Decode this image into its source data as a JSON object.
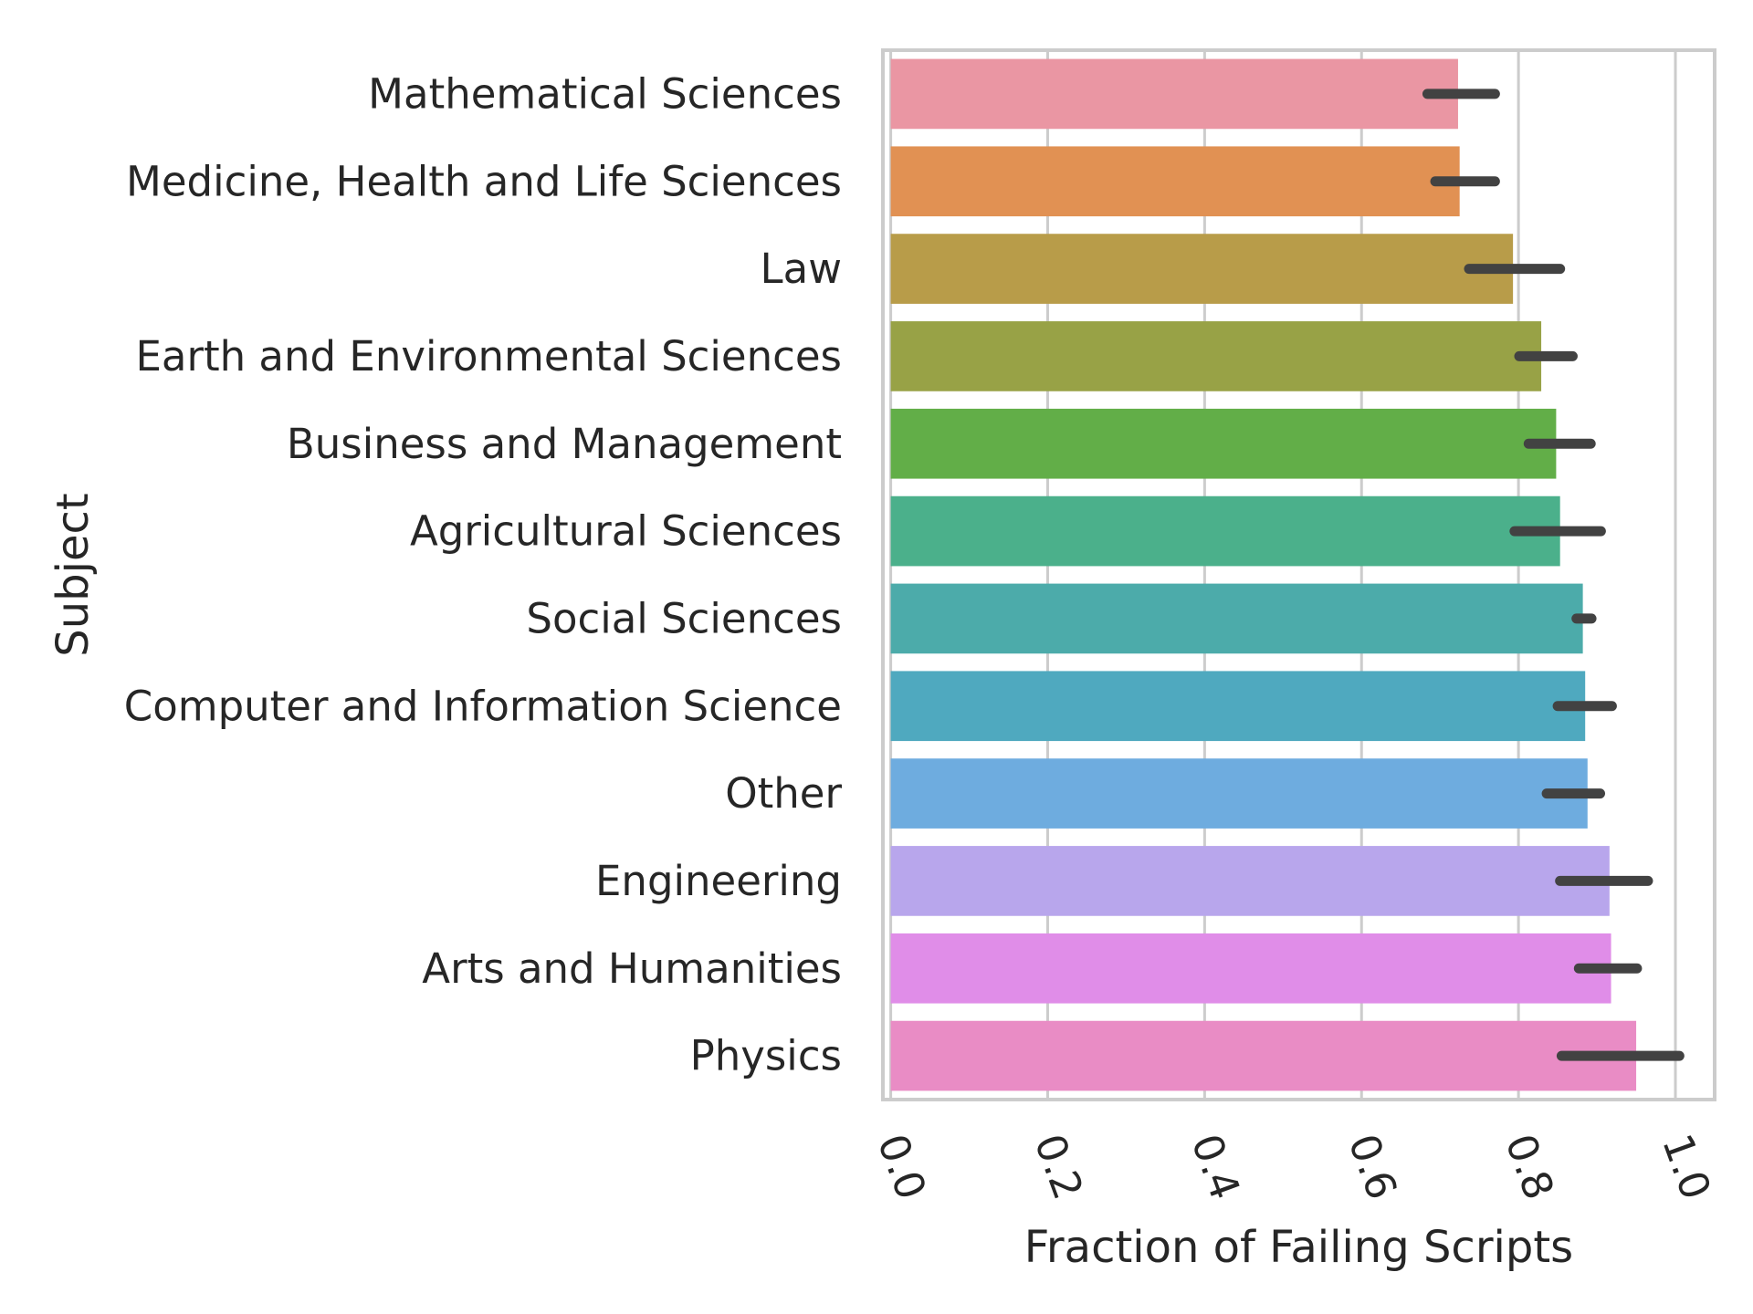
{
  "chart_data": {
    "type": "bar",
    "orientation": "horizontal",
    "xlabel": "Fraction of Failing Scripts",
    "ylabel": "Subject",
    "xlim": [
      -0.01,
      1.05
    ],
    "xticks": [
      "0.0",
      "0.2",
      "0.4",
      "0.6",
      "0.8",
      "1.0"
    ],
    "grid": true,
    "categories": [
      "Mathematical Sciences",
      "Medicine, Health and Life Sciences",
      "Law",
      "Earth and Environmental Sciences",
      "Business and Management",
      "Agricultural Sciences",
      "Social Sciences",
      "Computer and Information Science",
      "Other",
      "Engineering",
      "Arts and Humanities",
      "Physics"
    ],
    "values": [
      0.723,
      0.725,
      0.793,
      0.829,
      0.848,
      0.853,
      0.882,
      0.885,
      0.888,
      0.916,
      0.918,
      0.95
    ],
    "error_low": [
      0.684,
      0.694,
      0.737,
      0.801,
      0.813,
      0.795,
      0.874,
      0.85,
      0.836,
      0.853,
      0.877,
      0.855
    ],
    "error_high": [
      0.77,
      0.77,
      0.853,
      0.869,
      0.892,
      0.905,
      0.893,
      0.919,
      0.904,
      0.965,
      0.951,
      1.005
    ],
    "colors": [
      "#ea96a3",
      "#e19153",
      "#b89c49",
      "#98a246",
      "#62ae48",
      "#4bb08b",
      "#4cabaa",
      "#4fa9bf",
      "#6eacdf",
      "#b8a6ec",
      "#e08de8",
      "#e98cc5"
    ]
  }
}
